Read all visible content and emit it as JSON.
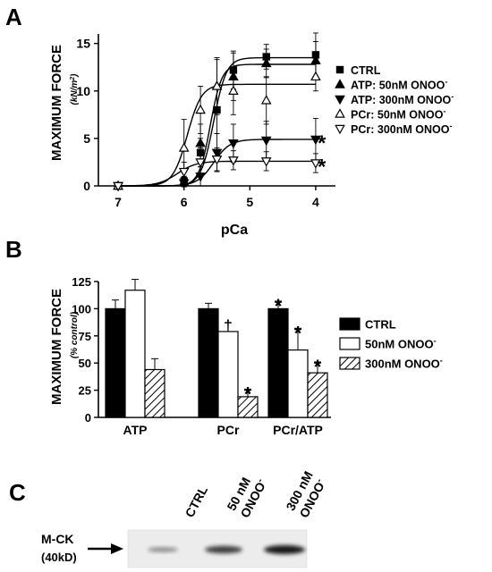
{
  "panels": {
    "a_letter": "A",
    "b_letter": "B",
    "c_letter": "C"
  },
  "chart_data": [
    {
      "type": "line",
      "panel": "A",
      "ylabel": "MAXIMUM FORCE",
      "ylabel_unit": "(kN/m",
      "ylabel_unit_sup": "2",
      "ylabel_unit_close": ")",
      "xlabel": "pCa",
      "x_reversed": true,
      "xlim": [
        7.3,
        3.7
      ],
      "ylim": [
        0,
        16
      ],
      "xticks": [
        7,
        6,
        5,
        4
      ],
      "xtick_labels": [
        "7",
        "6",
        "5",
        "4"
      ],
      "yticks": [
        0,
        5,
        10,
        15
      ],
      "ytick_labels": [
        "0",
        "5",
        "10",
        "15"
      ],
      "x": [
        7.0,
        6.0,
        5.75,
        5.5,
        5.25,
        4.75,
        4.0
      ],
      "series": [
        {
          "name": "CTRL",
          "marker": "square-filled",
          "values": [
            0,
            0.5,
            3.5,
            8.0,
            12.2,
            13.6,
            13.8
          ],
          "errors": [
            0.2,
            0.5,
            1.5,
            2.5,
            2.0,
            1.3,
            2.3
          ],
          "fit": {
            "top": 13.5,
            "pca50": 5.55,
            "hill": 4.5
          }
        },
        {
          "name": "ATP: 50nM ONOO",
          "name_sup": "-",
          "marker": "triangle-up-filled",
          "values": [
            0,
            0.4,
            4.5,
            10.5,
            11.5,
            12.9,
            13.2
          ],
          "errors": [
            0.2,
            0.5,
            2.0,
            3.0,
            2.5,
            1.5,
            2.0
          ],
          "fit": {
            "top": 12.8,
            "pca50": 5.6,
            "hill": 5.0
          }
        },
        {
          "name": "ATP: 300nM ONOO",
          "name_sup": "-",
          "marker": "triangle-down-filled",
          "values": [
            0,
            0.3,
            1.0,
            3.5,
            4.5,
            4.8,
            4.9
          ],
          "errors": [
            0.2,
            0.4,
            1.0,
            2.0,
            2.0,
            2.0,
            2.2
          ],
          "fit": {
            "top": 4.9,
            "pca50": 5.55,
            "hill": 3.5
          }
        },
        {
          "name": "PCr: 50nM ONOO",
          "name_sup": "-",
          "marker": "triangle-up-open",
          "values": [
            0,
            4.0,
            8.0,
            10.5,
            10.0,
            9.0,
            11.5
          ],
          "errors": [
            0.2,
            3.0,
            2.5,
            2.8,
            2.5,
            2.5,
            1.5
          ],
          "fit": {
            "top": 10.7,
            "pca50": 5.95,
            "hill": 4.0
          }
        },
        {
          "name": "PCr: 300nM ONOO",
          "name_sup": "-",
          "marker": "triangle-down-open",
          "values": [
            0,
            1.5,
            2.5,
            2.8,
            2.7,
            2.6,
            2.4
          ],
          "errors": [
            0.2,
            1.0,
            1.5,
            1.2,
            1.0,
            1.0,
            1.0
          ],
          "fit": {
            "top": 2.6,
            "pca50": 6.1,
            "hill": 3.0
          }
        }
      ],
      "annotations": [
        {
          "text": "*",
          "series": "ATP: 300nM ONOO"
        },
        {
          "text": "*",
          "series": "PCr: 300nM ONOO"
        }
      ],
      "legend_position": "right"
    },
    {
      "type": "bar",
      "panel": "B",
      "ylabel": "MAXIMUM FORCE",
      "ylabel_unit": "(% control)",
      "categories": [
        "ATP",
        "PCr",
        "PCr/ATP"
      ],
      "ylim": [
        0,
        125
      ],
      "yticks": [
        0,
        25,
        50,
        75,
        100,
        125
      ],
      "ytick_labels": [
        "0",
        "25",
        "50",
        "75",
        "100",
        "125"
      ],
      "series": [
        {
          "name": "CTRL",
          "fill": "black",
          "values": [
            100,
            100,
            100
          ],
          "errors": [
            8,
            5,
            7
          ]
        },
        {
          "name": "50nM ONOO",
          "name_sup": "-",
          "fill": "white",
          "values": [
            117,
            79,
            62
          ],
          "errors": [
            10,
            8,
            20
          ]
        },
        {
          "name": "300nM ONOO",
          "name_sup": "-",
          "fill": "hatched",
          "values": [
            44,
            19,
            41
          ],
          "errors": [
            10,
            7,
            10
          ]
        }
      ],
      "bar_marks": [
        [
          null,
          null,
          "*"
        ],
        [
          null,
          "†",
          "*"
        ],
        [
          null,
          "*",
          "*"
        ]
      ],
      "legend_position": "right"
    }
  ],
  "blot": {
    "lanes": [
      "CTRL",
      "50 nM",
      "300 nM"
    ],
    "lanes_line2": [
      "",
      "ONOO",
      "ONOO"
    ],
    "lanes_sup": [
      "",
      "-",
      "-"
    ],
    "band_intensity": [
      0.25,
      0.75,
      1.0
    ],
    "protein_label": "M-CK",
    "mw_label": "(40kD)"
  }
}
